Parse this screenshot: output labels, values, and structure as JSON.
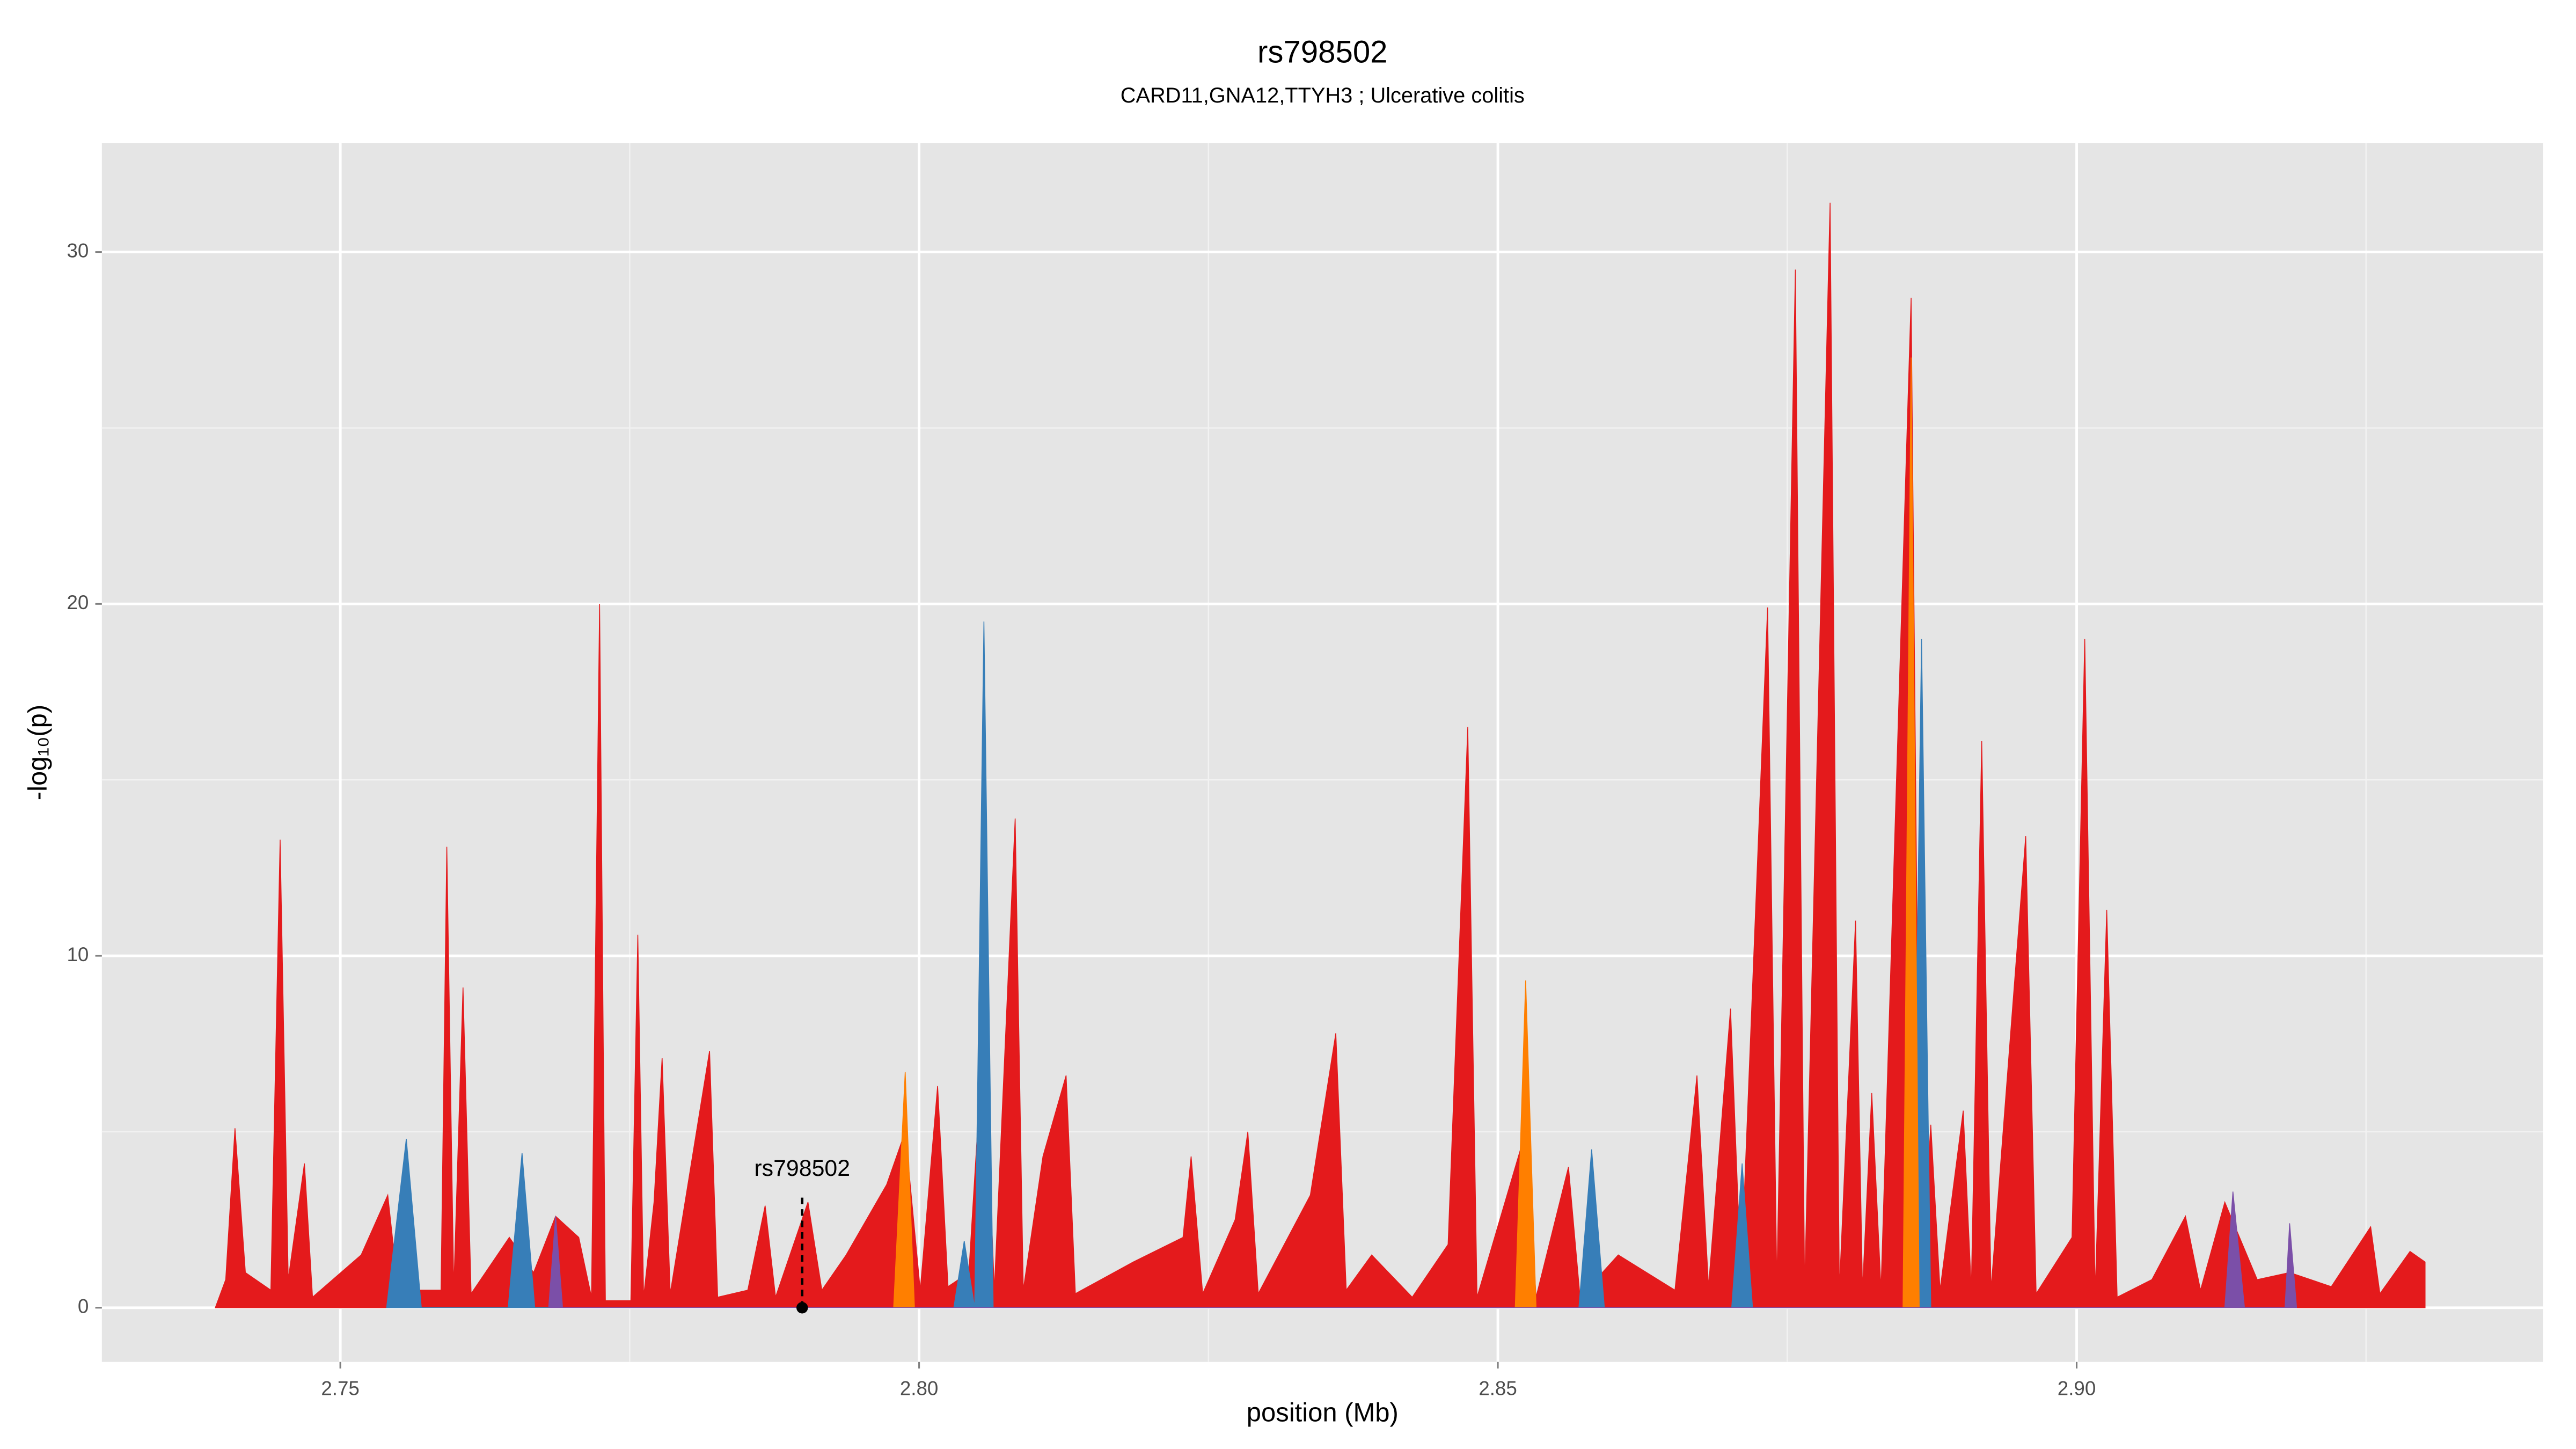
{
  "chart_data": {
    "type": "area",
    "title": "rs798502",
    "subtitle": "CARD11,GNA12,TTYH3 ; Ulcerative colitis",
    "xlabel": "position (Mb)",
    "ylabel": "-log₁₀(p)",
    "xlim": [
      2.7294,
      2.9403
    ],
    "ylim": [
      -1.54,
      33.1
    ],
    "xticks": [
      2.75,
      {
        "value": 2.8,
        "label": "2.80"
      },
      2.85,
      {
        "value": 2.9,
        "label": "2.90"
      }
    ],
    "yticks": [
      0,
      10,
      20,
      30
    ],
    "x_minor_ticks": [
      2.775,
      2.825,
      2.875,
      2.925
    ],
    "y_minor_ticks": [
      5,
      15,
      25
    ],
    "grid": true,
    "annotation": {
      "text": "rs798502",
      "x": 2.7899,
      "y": 0
    },
    "series": [
      {
        "color": "#e41a1c",
        "x": [
          2.7392,
          2.7401,
          2.7409,
          2.7418,
          2.744,
          2.7448,
          2.7455,
          2.7469,
          2.7476,
          2.7518,
          2.7541,
          2.755,
          2.7587,
          2.7592,
          2.7598,
          2.7606,
          2.7613,
          2.7646,
          2.7667,
          2.7686,
          2.7706,
          2.7717,
          2.7724,
          2.7729,
          2.7751,
          2.7757,
          2.7762,
          2.7771,
          2.7778,
          2.7785,
          2.7819,
          2.7826,
          2.7852,
          2.7867,
          2.7876,
          2.7904,
          2.7916,
          2.7937,
          2.7972,
          2.7988,
          2.8001,
          2.8016,
          2.8025,
          2.8043,
          2.8056,
          2.8065,
          2.8083,
          2.809,
          2.8107,
          2.8127,
          2.8135,
          2.8185,
          2.8228,
          2.8235,
          2.8245,
          2.8273,
          2.8284,
          2.8293,
          2.8338,
          2.836,
          2.8369,
          2.8391,
          2.8426,
          2.8457,
          2.8474,
          2.8482,
          2.8524,
          2.8533,
          2.8561,
          2.8571,
          2.8604,
          2.8653,
          2.8672,
          2.8682,
          2.8701,
          2.871,
          2.8733,
          2.8741,
          2.8757,
          2.8765,
          2.8787,
          2.8795,
          2.8809,
          2.8815,
          2.8823,
          2.8831,
          2.8857,
          2.8865,
          2.8874,
          2.8882,
          2.8902,
          2.8909,
          2.8918,
          2.8926,
          2.8956,
          2.8965,
          2.8996,
          2.9007,
          2.9016,
          2.9026,
          2.9035,
          2.9065,
          2.9094,
          2.9107,
          2.9128,
          2.9156,
          2.9184,
          2.922,
          2.9254,
          2.9262,
          2.9288,
          2.9301
        ],
        "values": [
          0,
          0.8,
          5.1,
          1.0,
          0.5,
          13.3,
          0.8,
          4.1,
          0.3,
          1.5,
          3.2,
          0.5,
          0.5,
          13.1,
          0.5,
          9.1,
          0.4,
          2.0,
          1.0,
          2.6,
          2.0,
          0.3,
          20.0,
          0.2,
          0.2,
          10.6,
          0.3,
          3.0,
          7.1,
          0.4,
          7.3,
          0.3,
          0.5,
          2.9,
          0.3,
          3.0,
          0.5,
          1.5,
          3.5,
          5.0,
          0.5,
          6.3,
          0.6,
          1.0,
          8.0,
          0.5,
          13.9,
          0.5,
          4.3,
          6.6,
          0.4,
          1.3,
          2.0,
          4.3,
          0.4,
          2.5,
          5.0,
          0.4,
          3.2,
          7.8,
          0.5,
          1.5,
          0.3,
          1.8,
          16.5,
          0.3,
          5.0,
          0.3,
          4.0,
          0.3,
          1.5,
          0.5,
          6.6,
          0.6,
          8.5,
          0.8,
          19.9,
          0.6,
          29.5,
          0.5,
          31.4,
          0.5,
          11.0,
          0.5,
          6.1,
          0.5,
          28.7,
          0.5,
          5.2,
          0.5,
          5.6,
          0.5,
          16.1,
          0.5,
          13.4,
          0.4,
          2.0,
          19.0,
          0.4,
          11.3,
          0.3,
          0.8,
          2.6,
          0.5,
          3.0,
          0.8,
          1.0,
          0.6,
          2.3,
          0.4,
          1.6,
          1.3
        ]
      },
      {
        "color": "#377eb8",
        "x": [
          2.754,
          2.7557,
          2.757,
          2.7645,
          2.7657,
          2.7668,
          2.803,
          2.8039,
          2.8048,
          2.8056,
          2.8064,
          2.857,
          2.8581,
          2.8592,
          2.8702,
          2.8711,
          2.872,
          2.8858,
          2.8866,
          2.8874
        ],
        "values": [
          0,
          4.8,
          0,
          0,
          4.4,
          0,
          0,
          1.9,
          0,
          19.5,
          0,
          0,
          4.5,
          0,
          0,
          4.1,
          0,
          0,
          19.0,
          0
        ]
      },
      {
        "color": "#ff7f00",
        "x": [
          2.7978,
          2.7988,
          2.7996,
          2.8515,
          2.8524,
          2.8533,
          2.885,
          2.8857,
          2.8864
        ],
        "values": [
          0,
          6.7,
          0,
          0,
          9.3,
          0,
          0,
          27.0,
          0
        ]
      },
      {
        "color": "#7b4fa8",
        "x": [
          2.768,
          2.7686,
          2.7692,
          2.9128,
          2.9135,
          2.9145,
          2.918,
          2.9184,
          2.919
        ],
        "values": [
          0,
          2.6,
          0,
          0,
          3.3,
          0,
          0,
          2.4,
          0
        ]
      }
    ]
  }
}
